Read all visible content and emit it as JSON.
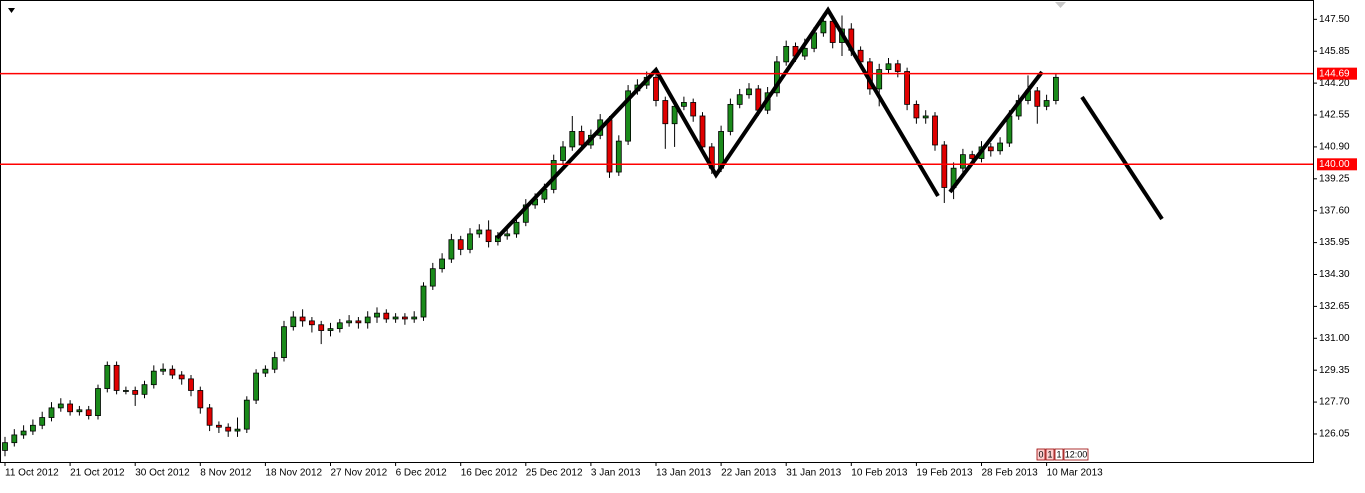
{
  "chart_data": {
    "type": "candlestick",
    "categories": [
      "11 Oct 2012",
      null,
      null,
      null,
      null,
      null,
      null,
      "21 Oct 2012",
      null,
      null,
      null,
      null,
      null,
      null,
      "30 Oct 2012",
      null,
      null,
      null,
      null,
      null,
      null,
      "8 Nov 2012",
      null,
      null,
      null,
      null,
      null,
      null,
      "18 Nov 2012",
      null,
      null,
      null,
      null,
      null,
      null,
      "27 Nov 2012",
      null,
      null,
      null,
      null,
      null,
      null,
      "6 Dec 2012",
      null,
      null,
      null,
      null,
      null,
      null,
      "16 Dec 2012",
      null,
      null,
      null,
      null,
      null,
      null,
      "25 Dec 2012",
      null,
      null,
      null,
      null,
      null,
      null,
      "3 Jan 2013",
      null,
      null,
      null,
      null,
      null,
      null,
      "13 Jan 2013",
      null,
      null,
      null,
      null,
      null,
      null,
      "22 Jan 2013",
      null,
      null,
      null,
      null,
      null,
      null,
      "31 Jan 2013",
      null,
      null,
      null,
      null,
      null,
      null,
      "10 Feb 2013",
      null,
      null,
      null,
      null,
      null,
      null,
      "19 Feb 2013",
      null,
      null,
      null,
      null,
      null,
      null,
      "28 Feb 2013",
      null,
      null,
      null,
      null,
      null,
      null,
      "10 Mar 2013",
      null
    ],
    "open": [
      125.2,
      125.6,
      126.0,
      126.2,
      126.5,
      126.9,
      127.4,
      127.6,
      127.2,
      127.3,
      127.0,
      128.4,
      129.6,
      128.3,
      128.3,
      128.1,
      128.6,
      129.3,
      129.4,
      129.1,
      128.9,
      128.3,
      127.4,
      126.5,
      126.4,
      126.2,
      126.3,
      127.8,
      129.2,
      129.4,
      130.0,
      131.6,
      132.1,
      131.9,
      131.7,
      131.4,
      131.5,
      131.8,
      131.9,
      131.8,
      132.1,
      132.3,
      132.0,
      132.1,
      132.0,
      132.1,
      133.7,
      134.6,
      135.1,
      136.1,
      135.6,
      136.4,
      136.6,
      136.0,
      136.3,
      136.4,
      137.0,
      137.9,
      138.2,
      138.7,
      140.2,
      140.9,
      141.7,
      141.0,
      141.5,
      142.3,
      139.6,
      141.2,
      143.8,
      144.1,
      144.5,
      143.3,
      142.1,
      143.0,
      143.2,
      142.5,
      140.9,
      139.8,
      141.7,
      143.1,
      143.6,
      143.9,
      142.8,
      143.7,
      145.3,
      146.1,
      145.6,
      146.0,
      146.8,
      147.4,
      146.3,
      147.0,
      145.9,
      145.3,
      143.9,
      144.9,
      145.2,
      144.8,
      143.1,
      142.4,
      142.5,
      141.0,
      138.8,
      139.8,
      140.5,
      140.3,
      140.9,
      140.7,
      141.1,
      142.5,
      143.3,
      143.8,
      143.0,
      143.3
    ],
    "high": [
      125.9,
      126.3,
      126.5,
      126.8,
      127.2,
      127.7,
      127.9,
      127.8,
      127.5,
      127.5,
      128.6,
      129.8,
      129.8,
      128.5,
      128.5,
      128.8,
      129.6,
      129.7,
      129.6,
      129.3,
      129.1,
      128.5,
      127.6,
      126.7,
      126.6,
      126.9,
      128.0,
      129.4,
      129.6,
      130.3,
      131.9,
      132.4,
      132.5,
      132.1,
      131.9,
      131.8,
      132.0,
      132.2,
      132.1,
      132.4,
      132.6,
      132.5,
      132.3,
      132.3,
      132.4,
      133.9,
      134.9,
      135.4,
      136.4,
      136.3,
      136.7,
      136.9,
      137.1,
      136.5,
      136.7,
      137.3,
      138.2,
      138.5,
      139.0,
      140.5,
      141.2,
      142.5,
      142.0,
      141.8,
      142.6,
      142.5,
      141.5,
      144.1,
      144.4,
      144.8,
      144.7,
      143.5,
      143.3,
      143.5,
      143.4,
      142.7,
      141.1,
      142.0,
      143.4,
      143.9,
      144.2,
      144.1,
      144.0,
      145.6,
      146.4,
      146.3,
      146.5,
      147.1,
      147.8,
      147.6,
      147.7,
      147.3,
      146.1,
      145.5,
      145.2,
      145.5,
      145.4,
      145.0,
      143.3,
      142.8,
      142.7,
      141.2,
      140.1,
      140.8,
      140.7,
      141.2,
      141.1,
      141.4,
      142.8,
      143.6,
      144.6,
      144.0,
      143.6,
      144.7
    ],
    "low": [
      124.9,
      125.4,
      125.8,
      126.0,
      126.3,
      126.7,
      127.2,
      127.0,
      127.0,
      126.8,
      126.8,
      128.2,
      128.1,
      128.1,
      127.5,
      127.9,
      128.4,
      129.1,
      128.9,
      128.6,
      128.0,
      127.1,
      126.2,
      126.1,
      125.9,
      125.9,
      126.1,
      127.6,
      129.0,
      129.2,
      129.8,
      131.4,
      131.6,
      131.3,
      130.7,
      131.1,
      131.3,
      131.6,
      131.5,
      131.5,
      131.8,
      131.8,
      131.8,
      131.7,
      131.8,
      131.9,
      133.5,
      134.4,
      134.9,
      135.3,
      135.4,
      136.2,
      135.7,
      135.8,
      136.1,
      136.2,
      136.8,
      137.7,
      138.0,
      138.5,
      140.0,
      140.7,
      140.7,
      140.8,
      141.3,
      139.3,
      139.4,
      141.0,
      143.6,
      143.9,
      143.0,
      140.8,
      140.9,
      142.8,
      142.2,
      140.6,
      139.5,
      139.6,
      141.5,
      142.9,
      143.4,
      142.5,
      142.6,
      143.5,
      145.1,
      145.3,
      145.4,
      145.8,
      146.6,
      146.0,
      145.6,
      145.6,
      145.0,
      143.6,
      143.0,
      144.7,
      144.5,
      142.8,
      142.1,
      142.1,
      140.7,
      138.0,
      138.2,
      139.5,
      140.0,
      140.1,
      140.4,
      140.5,
      140.9,
      142.3,
      143.1,
      142.1,
      142.8,
      143.1
    ],
    "close": [
      125.6,
      126.0,
      126.2,
      126.5,
      126.9,
      127.4,
      127.6,
      127.2,
      127.3,
      127.0,
      128.4,
      129.6,
      128.3,
      128.3,
      128.1,
      128.6,
      129.3,
      129.4,
      129.1,
      128.9,
      128.3,
      127.4,
      126.5,
      126.4,
      126.2,
      126.3,
      127.8,
      129.2,
      129.4,
      130.0,
      131.6,
      132.1,
      131.9,
      131.7,
      131.4,
      131.5,
      131.8,
      131.9,
      131.8,
      132.1,
      132.3,
      132.0,
      132.1,
      132.0,
      132.1,
      133.7,
      134.6,
      135.1,
      136.1,
      135.6,
      136.4,
      136.6,
      136.0,
      136.3,
      136.4,
      137.0,
      137.9,
      138.2,
      138.7,
      140.2,
      140.9,
      141.7,
      141.0,
      141.5,
      142.3,
      139.6,
      141.2,
      143.8,
      144.1,
      144.5,
      143.3,
      142.1,
      143.0,
      143.2,
      142.5,
      140.9,
      139.8,
      141.7,
      143.1,
      143.6,
      143.9,
      142.8,
      143.7,
      145.3,
      146.1,
      145.6,
      146.0,
      146.8,
      147.4,
      146.3,
      147.0,
      145.9,
      145.3,
      143.9,
      144.9,
      145.2,
      144.8,
      143.1,
      142.4,
      142.5,
      141.0,
      138.8,
      139.8,
      140.5,
      140.3,
      140.9,
      140.7,
      141.1,
      142.5,
      143.3,
      143.8,
      143.0,
      143.3,
      144.5
    ],
    "up_color": "#1a8a1a",
    "down_color": "#e00000",
    "ylim": [
      124.6,
      148.5
    ],
    "yticks": [
      {
        "value": 147.5,
        "label": "147.50"
      },
      {
        "value": 145.85,
        "label": "145.85"
      },
      {
        "value": 144.2,
        "label": "144.20"
      },
      {
        "value": 142.55,
        "label": "142.55"
      },
      {
        "value": 140.9,
        "label": "140.90"
      },
      {
        "value": 139.25,
        "label": "139.25"
      },
      {
        "value": 137.6,
        "label": "137.60"
      },
      {
        "value": 135.95,
        "label": "135.95"
      },
      {
        "value": 134.3,
        "label": "134.30"
      },
      {
        "value": 132.65,
        "label": "132.65"
      },
      {
        "value": 131.0,
        "label": "131.00"
      },
      {
        "value": 129.35,
        "label": "129.35"
      },
      {
        "value": 127.7,
        "label": "127.70"
      },
      {
        "value": 126.05,
        "label": "126.05"
      }
    ],
    "hlines": [
      {
        "value": 144.69,
        "label": "144.69",
        "color": "#ff0000"
      },
      {
        "value": 140.0,
        "label": "140.00",
        "color": "#ff0000"
      }
    ],
    "info_box": [
      "0",
      "1",
      "1",
      "12:00"
    ]
  }
}
